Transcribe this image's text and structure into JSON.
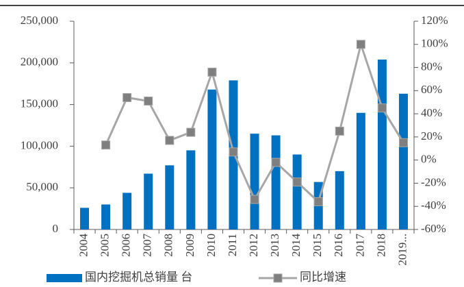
{
  "chart_data": {
    "type": "bar_line",
    "categories": [
      "2004",
      "2005",
      "2006",
      "2007",
      "2008",
      "2009",
      "2010",
      "2011",
      "2012",
      "2013",
      "2014",
      "2015",
      "2016",
      "2017",
      "2018",
      "2019..."
    ],
    "series": [
      {
        "name": "国内挖掘机总销量 台",
        "type": "bar",
        "color": "#0070c0",
        "values": [
          26000,
          30000,
          44000,
          67000,
          77000,
          95000,
          168000,
          179000,
          115000,
          113000,
          90000,
          57000,
          70000,
          140000,
          204000,
          163000
        ]
      },
      {
        "name": "同比增速",
        "type": "line",
        "axis": "y2",
        "color": "#a6a6a6",
        "marker_color": "#7f7f7f",
        "values": [
          null,
          13,
          54,
          51,
          17,
          24,
          76,
          7,
          -34,
          -2,
          -19,
          -36,
          25,
          100,
          45,
          15
        ]
      }
    ],
    "ylim": [
      0,
      250000
    ],
    "yticks": [
      0,
      {
        "value": 50000,
        "label": "50,000"
      },
      {
        "value": 100000,
        "label": "100,000"
      },
      {
        "value": 150000,
        "label": "150,000"
      },
      {
        "value": 200000,
        "label": "200,000"
      },
      {
        "value": 250000,
        "label": "250,000"
      }
    ],
    "y2lim": [
      -60,
      120
    ],
    "y2ticks": [
      {
        "value": -60,
        "label": "-60%"
      },
      {
        "value": -40,
        "label": "-40%"
      },
      {
        "value": -20,
        "label": "-20%"
      },
      {
        "value": 0,
        "label": "0%"
      },
      {
        "value": 20,
        "label": "20%"
      },
      {
        "value": 40,
        "label": "40%"
      },
      {
        "value": 60,
        "label": "60%"
      },
      {
        "value": 80,
        "label": "80%"
      },
      {
        "value": 100,
        "label": "100%"
      },
      {
        "value": 120,
        "label": "120%"
      }
    ],
    "grid": false,
    "legend": "bottom"
  }
}
